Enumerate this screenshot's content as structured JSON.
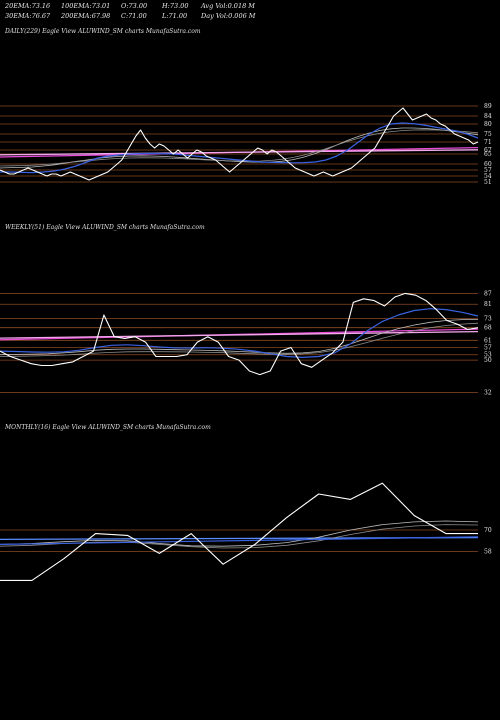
{
  "header": {
    "line1": [
      {
        "label": "20EMA:",
        "value": "73.16"
      },
      {
        "label": "100EMA:",
        "value": "73.01"
      },
      {
        "label": "O:",
        "value": "73.00"
      },
      {
        "label": "H:",
        "value": "73.00"
      },
      {
        "label": "Avg Vol:",
        "value": "0.018  M"
      }
    ],
    "line2": [
      {
        "label": "30EMA:",
        "value": "76.67"
      },
      {
        "label": "200EMA:",
        "value": "67.98"
      },
      {
        "label": "C:",
        "value": "71.00"
      },
      {
        "label": "L:",
        "value": "71.00"
      },
      {
        "label": "Day Vol:",
        "value": "0.006  M"
      }
    ]
  },
  "chart_data": [
    {
      "type": "line",
      "title": "DAILY(229) Eagle  View  ALUWIND_SM charts MunafaSutra.com",
      "ylim": [
        48,
        93
      ],
      "levels": [
        89,
        84,
        80,
        75,
        71,
        67,
        65,
        60,
        57,
        54,
        51
      ],
      "price": [
        57,
        56,
        55,
        55,
        56,
        57,
        58,
        57,
        56,
        55,
        54,
        55,
        55,
        54,
        55,
        56,
        55,
        54,
        53,
        52,
        53,
        54,
        55,
        56,
        58,
        60,
        62,
        66,
        70,
        74,
        77,
        73,
        70,
        68,
        70,
        69,
        67,
        65,
        67,
        65,
        63,
        65,
        67,
        66,
        64,
        63,
        62,
        60,
        58,
        56,
        58,
        60,
        62,
        64,
        66,
        68,
        67,
        65,
        67,
        66,
        64,
        62,
        60,
        58,
        57,
        56,
        55,
        54,
        55,
        56,
        55,
        54,
        55,
        56,
        57,
        58,
        60,
        62,
        64,
        66,
        68,
        72,
        76,
        80,
        84,
        86,
        88,
        85,
        82,
        83,
        84,
        85,
        83,
        82,
        80,
        79,
        77,
        75,
        74,
        73,
        72,
        70,
        71
      ],
      "price_color": "#ffffff",
      "ema_fast": {
        "values": [
          56,
          56,
          55.8,
          55.7,
          56,
          56.5,
          57.5,
          59,
          61,
          63,
          64,
          64.5,
          65,
          65.2,
          65.3,
          65.2,
          65,
          64.5,
          64,
          63.5,
          63,
          62.5,
          62,
          61.5,
          61,
          60.8,
          60.7,
          60.6,
          60.7,
          61,
          62,
          64,
          67,
          71,
          75,
          78,
          80,
          80.5,
          80.2,
          79.5,
          78.5,
          77.5,
          76.5,
          75,
          73
        ],
        "color": "#3a62e0"
      },
      "ema_slow": [
        {
          "values": [
            58,
            58.2,
            58.3,
            58.5,
            59,
            59.6,
            60.4,
            61.3,
            62,
            62.8,
            63.4,
            63.8,
            64,
            64.1,
            64,
            63.8,
            63.5,
            63.1,
            62.7,
            62.3,
            61.9,
            61.5,
            61.2,
            61,
            60.9,
            61,
            61.4,
            62.2,
            63.5,
            65.2,
            67.2,
            69.5,
            71.8,
            73.8,
            75.5,
            76.8,
            77.6,
            78,
            78,
            77.8,
            77.4,
            76.8,
            76.1,
            75.4,
            74.6
          ],
          "color": "#bdbdbd"
        },
        {
          "values": [
            59,
            59.1,
            59.2,
            59.4,
            59.7,
            60.1,
            60.6,
            61.1,
            61.6,
            62.1,
            62.5,
            62.8,
            63,
            63.1,
            63.1,
            63,
            62.8,
            62.6,
            62.3,
            62,
            61.8,
            61.6,
            61.5,
            61.4,
            61.5,
            61.8,
            62.4,
            63.3,
            64.5,
            66,
            67.7,
            69.5,
            71.3,
            72.9,
            74.3,
            75.4,
            76.2,
            76.7,
            77,
            77.1,
            77,
            76.8,
            76.5,
            76.1,
            75.6
          ],
          "color": "#8c8c8c"
        }
      ],
      "trendlines": [
        {
          "from": 63.5,
          "to": 68.2,
          "color": "#e64bd9"
        },
        {
          "from": 64.6,
          "to": 67.1,
          "color": "#f3a8ec"
        }
      ]
    },
    {
      "type": "line",
      "title": "WEEKLY(51) Eagle  View  ALUWIND_SM charts MunafaSutra.com",
      "ylim": [
        29,
        90
      ],
      "levels": [
        87,
        81,
        73,
        68,
        61,
        57,
        53,
        50,
        32
      ],
      "price": [
        55,
        52,
        50,
        48,
        47,
        47,
        48,
        49,
        52,
        55,
        75,
        63,
        62,
        63,
        60,
        52,
        52,
        52,
        53,
        60,
        63,
        60,
        52,
        50,
        44,
        42,
        44,
        55,
        57,
        48,
        46,
        50,
        54,
        60,
        82,
        84,
        83,
        80,
        85,
        87,
        86,
        83,
        78,
        72,
        70,
        67,
        68
      ],
      "price_color": "#ffffff",
      "ema_fast": {
        "values": [
          55,
          54.8,
          54.5,
          54.4,
          54.6,
          55.5,
          57,
          58.2,
          58.5,
          58,
          57.3,
          56.8,
          56.7,
          56.9,
          56.6,
          56,
          55,
          53.5,
          52,
          51.5,
          52,
          54,
          59,
          66,
          71.5,
          75,
          77.5,
          78.5,
          78,
          76.5,
          74.5
        ],
        "color": "#3a62e0"
      },
      "ema_slow": [
        {
          "values": [
            53,
            53.2,
            53.3,
            53.5,
            54,
            54.7,
            55.5,
            56,
            56.2,
            56.2,
            56,
            55.8,
            55.6,
            55.4,
            55.2,
            54.8,
            54.4,
            54,
            53.8,
            54,
            54.8,
            56.5,
            59,
            62,
            65,
            67.5,
            69.5,
            71,
            72,
            72.5,
            72.6
          ],
          "color": "#bdbdbd"
        },
        {
          "values": [
            52,
            52.1,
            52.3,
            52.5,
            52.8,
            53.3,
            53.9,
            54.3,
            54.6,
            54.7,
            54.7,
            54.6,
            54.5,
            54.3,
            54.1,
            53.8,
            53.5,
            53.3,
            53.2,
            53.5,
            54.2,
            55.5,
            57.4,
            59.7,
            62.1,
            64.4,
            66.4,
            68,
            69.2,
            70,
            70.5
          ],
          "color": "#8c8c8c"
        }
      ],
      "trendlines": [
        {
          "from": 61.3,
          "to": 67.2,
          "color": "#e64bd9"
        },
        {
          "from": 62.2,
          "to": 65.8,
          "color": "#f3a8ec"
        }
      ]
    },
    {
      "type": "line",
      "title": "MONTHLY(16) Eagle  View  ALUWIND_SM charts MunafaSutra.com",
      "ylim": [
        20,
        120
      ],
      "levels": [
        70,
        58
      ],
      "price": [
        42,
        42,
        54,
        68,
        67,
        57,
        68,
        51,
        62,
        77,
        90,
        87,
        96,
        78,
        68,
        68
      ],
      "price_color": "#ffffff",
      "ema_fast": {
        "values": [
          62,
          62.6,
          63.2,
          63.8,
          64.4,
          65,
          65.6,
          66.2
        ],
        "color": "#3a62e0"
      },
      "ema_slow": [
        {
          "values": [
            62,
            62.5,
            63.5,
            64.2,
            64,
            62.5,
            61.2,
            61,
            61.5,
            63,
            66,
            70,
            73,
            74.5,
            75,
            74.5
          ],
          "color": "#bdbdbd"
        },
        {
          "values": [
            61,
            61.5,
            62.5,
            63.2,
            63.2,
            62,
            60.7,
            60,
            60.2,
            61.5,
            64,
            67.5,
            70.5,
            72.2,
            73,
            72.8
          ],
          "color": "#8c8c8c"
        }
      ],
      "trendlines": [
        {
          "from": 64.8,
          "to": 65.8,
          "color": "#5a8cff"
        }
      ]
    }
  ]
}
